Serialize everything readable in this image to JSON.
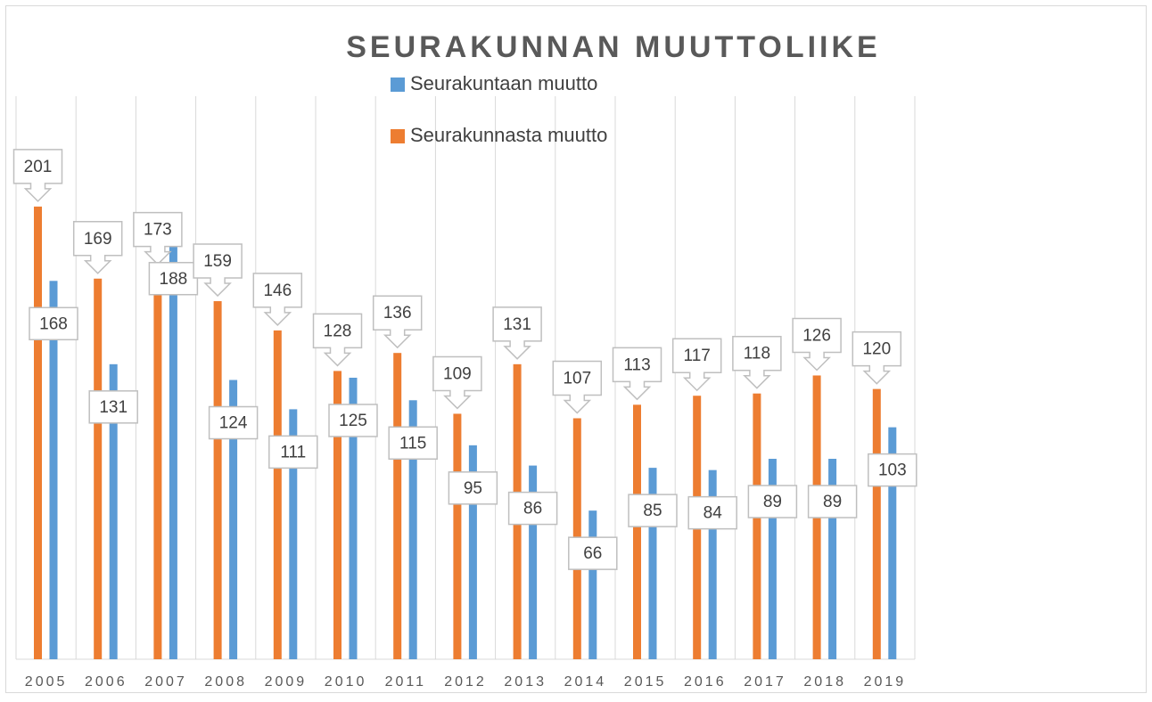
{
  "chart_data": {
    "type": "bar",
    "title": "SEURAKUNNAN MUUTTOLIIKE",
    "categories": [
      "2005",
      "2006",
      "2007",
      "2008",
      "2009",
      "2010",
      "2011",
      "2012",
      "2013",
      "2014",
      "2015",
      "2016",
      "2017",
      "2018",
      "2019"
    ],
    "series": [
      {
        "name": "Seurakuntaan muutto",
        "color": "#5b9bd5",
        "values": [
          168,
          131,
          188,
          124,
          111,
          125,
          115,
          95,
          86,
          66,
          85,
          84,
          89,
          89,
          103
        ]
      },
      {
        "name": "Seurakunnasta muutto",
        "color": "#ed7d31",
        "values": [
          201,
          169,
          173,
          159,
          146,
          128,
          136,
          109,
          131,
          107,
          113,
          117,
          118,
          126,
          120
        ]
      }
    ],
    "ylim": [
      0,
      250
    ],
    "grid": true
  }
}
